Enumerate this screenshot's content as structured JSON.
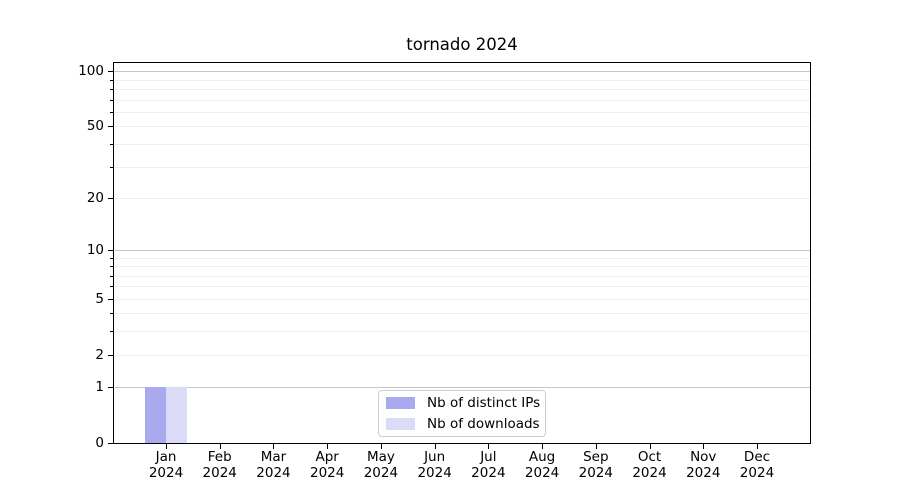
{
  "chart_data": {
    "type": "bar",
    "title": "tornado 2024",
    "x_months": [
      "Jan",
      "Feb",
      "Mar",
      "Apr",
      "May",
      "Jun",
      "Jul",
      "Aug",
      "Sep",
      "Oct",
      "Nov",
      "Dec"
    ],
    "x_year": "2024",
    "categories": [
      "Jan 2024",
      "Feb 2024",
      "Mar 2024",
      "Apr 2024",
      "May 2024",
      "Jun 2024",
      "Jul 2024",
      "Aug 2024",
      "Sep 2024",
      "Oct 2024",
      "Nov 2024",
      "Dec 2024"
    ],
    "series": [
      {
        "name": "Nb of distinct IPs",
        "color": "#a9a9f0",
        "values": [
          1,
          0,
          0,
          0,
          0,
          0,
          0,
          0,
          0,
          0,
          0,
          0
        ]
      },
      {
        "name": "Nb of downloads",
        "color": "#dbdbf8",
        "values": [
          1,
          0,
          0,
          0,
          0,
          0,
          0,
          0,
          0,
          0,
          0,
          0
        ]
      }
    ],
    "xlabel": "",
    "ylabel": "",
    "y_scale": "log1p",
    "ylim": [
      0,
      111
    ],
    "y_ticks": [
      0,
      1,
      2,
      5,
      10,
      20,
      50,
      100
    ],
    "y_gridlines_major": [
      1,
      10,
      100
    ],
    "y_gridlines_minor": [
      2,
      3,
      4,
      5,
      6,
      7,
      8,
      9,
      20,
      30,
      40,
      50,
      60,
      70,
      80,
      90
    ],
    "grid": "horizontal",
    "legend_position": "lower center",
    "colors": {
      "major_grid": "#c6c6c6",
      "minor_grid": "#efefef",
      "spine": "#000000",
      "background": "#ffffff"
    }
  }
}
